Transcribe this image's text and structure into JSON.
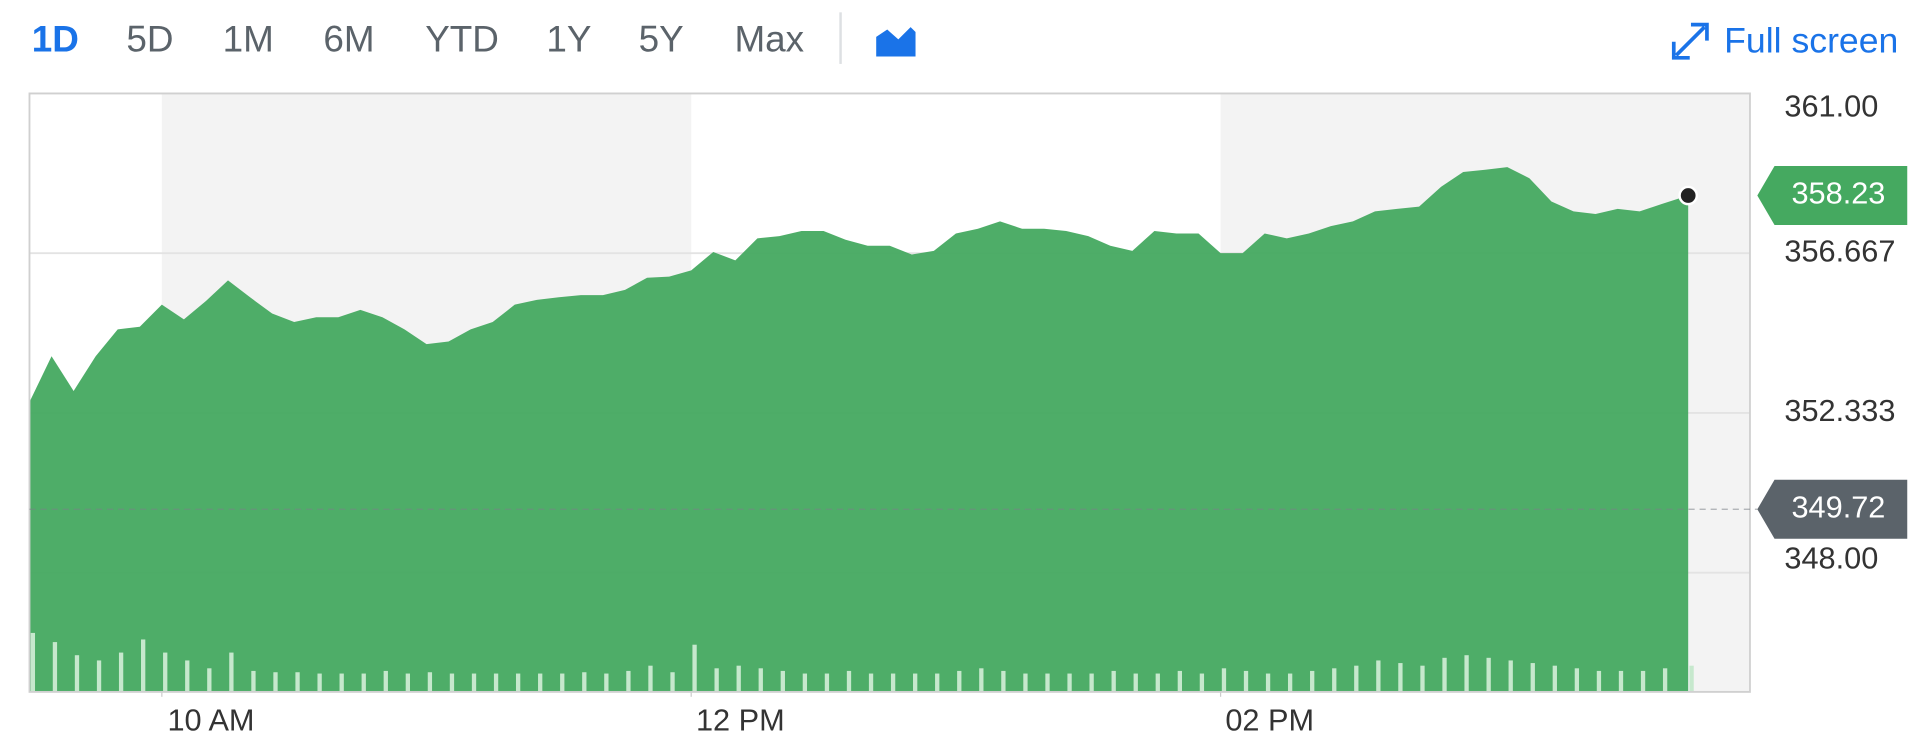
{
  "toolbar": {
    "ranges": [
      "1D",
      "5D",
      "1M",
      "6M",
      "YTD",
      "1Y",
      "5Y",
      "Max"
    ],
    "active": "1D",
    "full_screen": "Full screen"
  },
  "chart_data": {
    "type": "area",
    "x": [
      "09:30",
      "09:35",
      "09:40",
      "09:45",
      "09:50",
      "09:55",
      "10:00",
      "10:05",
      "10:10",
      "10:15",
      "10:20",
      "10:25",
      "10:30",
      "10:35",
      "10:40",
      "10:45",
      "10:50",
      "10:55",
      "11:00",
      "11:05",
      "11:10",
      "11:15",
      "11:20",
      "11:25",
      "11:30",
      "11:35",
      "11:40",
      "11:45",
      "11:50",
      "11:55",
      "12:00",
      "12:05",
      "12:10",
      "12:15",
      "12:20",
      "12:25",
      "12:30",
      "12:35",
      "12:40",
      "12:45",
      "12:50",
      "12:55",
      "13:00",
      "13:05",
      "13:10",
      "13:15",
      "13:20",
      "13:25",
      "13:30",
      "13:35",
      "13:40",
      "13:45",
      "13:50",
      "13:55",
      "14:00",
      "14:05",
      "14:10",
      "14:15",
      "14:20",
      "14:25",
      "14:30",
      "14:35",
      "14:40",
      "14:45",
      "14:50",
      "14:55",
      "15:00",
      "15:05",
      "15:10",
      "15:15",
      "15:20",
      "15:25",
      "15:30",
      "15:35",
      "15:40",
      "15:46"
    ],
    "series": [
      {
        "color": "#45a960",
        "values": [
          352.63,
          353.87,
          352.93,
          353.87,
          354.6,
          354.67,
          355.27,
          354.87,
          355.37,
          355.93,
          355.47,
          355.03,
          354.8,
          354.93,
          354.93,
          355.13,
          354.93,
          354.6,
          354.2,
          354.27,
          354.6,
          354.8,
          355.27,
          355.4,
          355.47,
          355.53,
          355.53,
          355.67,
          356.0,
          356.03,
          356.2,
          356.7,
          356.47,
          357.07,
          357.13,
          357.27,
          357.27,
          357.03,
          356.87,
          356.87,
          356.63,
          356.73,
          357.2,
          357.33,
          357.53,
          357.33,
          357.33,
          357.27,
          357.13,
          356.87,
          356.73,
          357.27,
          357.2,
          357.2,
          356.67,
          356.67,
          357.2,
          357.07,
          357.2,
          357.4,
          357.53,
          357.8,
          357.87,
          357.93,
          358.47,
          358.87,
          358.93,
          359.0,
          358.7,
          358.07,
          357.8,
          357.73,
          357.87,
          357.8,
          358.0,
          358.23
        ]
      }
    ],
    "volume": {
      "color": "#c6e8cd",
      "values": [
        45,
        38,
        28,
        24,
        30,
        40,
        30,
        24,
        18,
        30,
        16,
        15,
        15,
        14,
        14,
        14,
        16,
        14,
        15,
        14,
        14,
        14,
        14,
        14,
        14,
        15,
        14,
        16,
        20,
        15,
        36,
        18,
        20,
        18,
        16,
        14,
        14,
        16,
        14,
        14,
        14,
        14,
        16,
        18,
        16,
        14,
        14,
        14,
        14,
        16,
        14,
        14,
        16,
        14,
        18,
        16,
        14,
        14,
        16,
        18,
        20,
        24,
        22,
        20,
        26,
        28,
        26,
        24,
        22,
        20,
        18,
        16,
        16,
        16,
        18,
        20
      ]
    },
    "xlim": [
      "09:30",
      "16:00"
    ],
    "xticks": [
      {
        "value": "10:00",
        "label": "10 AM"
      },
      {
        "value": "12:00",
        "label": "12 PM"
      },
      {
        "value": "14:00",
        "label": "02 PM"
      }
    ],
    "ylim": [
      344.767,
      361
    ],
    "yticks": [
      {
        "value": 348,
        "label": "348.00"
      },
      352.333,
      356.667,
      {
        "value": 361,
        "label": "361.00"
      }
    ],
    "current_price": 358.23,
    "previous_close": 349.72,
    "grid": true
  }
}
